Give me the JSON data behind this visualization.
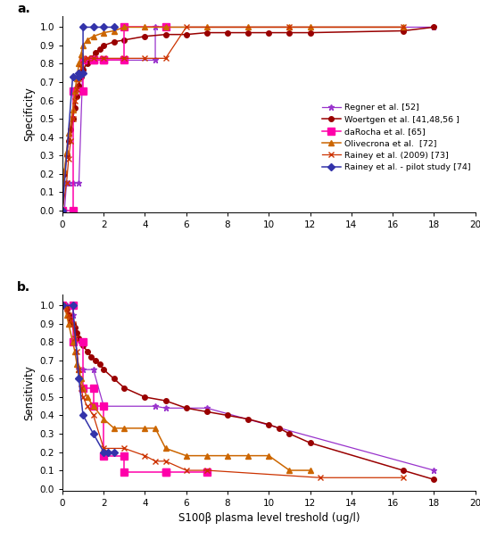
{
  "title_a": "a.",
  "title_b": "b.",
  "xlabel": "S100β plasma level treshold (ug/l)",
  "ylabel_a": "Specificity",
  "ylabel_b": "Sensitivity",
  "xlim": [
    0,
    20
  ],
  "xticks": [
    0,
    2,
    4,
    6,
    8,
    10,
    12,
    14,
    16,
    18,
    20
  ],
  "yticks": [
    0.0,
    0.1,
    0.2,
    0.3,
    0.4,
    0.5,
    0.6,
    0.7,
    0.8,
    0.9,
    1.0
  ],
  "series": [
    {
      "label": "Regner et al. [52]",
      "color": "#9933cc",
      "marker": "*",
      "markersize": 5,
      "linewidth": 0.9,
      "spec_x": [
        0.0,
        0.1,
        0.2,
        0.3,
        0.5,
        0.8,
        1.0,
        1.5,
        2.0,
        4.5,
        4.5,
        5.0,
        18.0
      ],
      "spec_y": [
        0.0,
        0.0,
        0.15,
        0.15,
        0.15,
        0.15,
        0.82,
        0.82,
        0.82,
        0.82,
        1.0,
        1.0,
        1.0
      ],
      "sens_x": [
        0.0,
        0.1,
        0.2,
        0.3,
        0.5,
        0.8,
        1.0,
        1.5,
        2.0,
        4.5,
        5.0,
        7.0,
        18.0
      ],
      "sens_y": [
        1.0,
        1.0,
        1.0,
        0.95,
        0.95,
        0.65,
        0.65,
        0.65,
        0.45,
        0.45,
        0.44,
        0.44,
        0.1
      ]
    },
    {
      "label": "Woertgen et al. [41,48,56 ]",
      "color": "#990000",
      "marker": "o",
      "markersize": 4,
      "linewidth": 1.1,
      "spec_x": [
        0.0,
        0.1,
        0.2,
        0.3,
        0.4,
        0.5,
        0.6,
        0.7,
        0.8,
        0.9,
        1.0,
        1.2,
        1.4,
        1.6,
        1.8,
        2.0,
        2.5,
        3.0,
        4.0,
        5.0,
        6.0,
        7.0,
        8.0,
        9.0,
        10.0,
        11.0,
        12.0,
        16.5,
        18.0
      ],
      "spec_y": [
        0.0,
        0.2,
        0.3,
        0.38,
        0.44,
        0.5,
        0.56,
        0.62,
        0.68,
        0.73,
        0.77,
        0.8,
        0.83,
        0.86,
        0.88,
        0.9,
        0.92,
        0.93,
        0.95,
        0.96,
        0.96,
        0.97,
        0.97,
        0.97,
        0.97,
        0.97,
        0.97,
        0.98,
        1.0
      ],
      "sens_x": [
        0.0,
        0.1,
        0.2,
        0.3,
        0.4,
        0.5,
        0.6,
        0.7,
        0.8,
        0.9,
        1.0,
        1.2,
        1.4,
        1.6,
        1.8,
        2.0,
        2.5,
        3.0,
        4.0,
        5.0,
        6.0,
        7.0,
        8.0,
        9.0,
        10.0,
        10.5,
        11.0,
        12.0,
        16.5,
        18.0
      ],
      "sens_y": [
        1.0,
        1.0,
        0.98,
        0.95,
        0.92,
        0.9,
        0.88,
        0.85,
        0.82,
        0.8,
        0.78,
        0.75,
        0.72,
        0.7,
        0.68,
        0.65,
        0.6,
        0.55,
        0.5,
        0.48,
        0.44,
        0.42,
        0.4,
        0.38,
        0.35,
        0.33,
        0.3,
        0.25,
        0.1,
        0.05
      ]
    },
    {
      "label": "daRocha et al. [65]",
      "color": "#ff00aa",
      "marker": "s",
      "markersize": 6,
      "linewidth": 1.1,
      "spec_x": [
        0.0,
        0.5,
        0.5,
        1.0,
        1.0,
        1.5,
        1.5,
        2.0,
        2.0,
        3.0,
        3.0,
        5.0
      ],
      "spec_y": [
        0.0,
        0.0,
        0.65,
        0.65,
        0.82,
        0.82,
        0.82,
        0.82,
        0.82,
        0.82,
        1.0,
        1.0
      ],
      "sens_x": [
        0.0,
        0.5,
        0.5,
        1.0,
        1.0,
        1.5,
        1.5,
        2.0,
        2.0,
        3.0,
        3.0,
        5.0,
        5.0,
        7.0
      ],
      "sens_y": [
        1.0,
        1.0,
        0.8,
        0.8,
        0.55,
        0.55,
        0.45,
        0.45,
        0.18,
        0.18,
        0.09,
        0.09,
        0.09,
        0.09
      ]
    },
    {
      "label": "Olivecrona et al.  [72]",
      "color": "#cc6600",
      "marker": "^",
      "markersize": 5,
      "linewidth": 1.1,
      "spec_x": [
        0.0,
        0.1,
        0.2,
        0.3,
        0.5,
        0.6,
        0.7,
        0.8,
        0.9,
        1.0,
        1.2,
        1.5,
        2.0,
        2.5,
        3.0,
        4.0,
        5.0,
        7.0,
        9.0,
        11.0,
        12.0,
        16.5
      ],
      "spec_y": [
        0.0,
        0.22,
        0.32,
        0.42,
        0.55,
        0.65,
        0.72,
        0.8,
        0.85,
        0.9,
        0.93,
        0.95,
        0.97,
        0.98,
        1.0,
        1.0,
        1.0,
        1.0,
        1.0,
        1.0,
        1.0,
        1.0
      ],
      "sens_x": [
        0.0,
        0.1,
        0.2,
        0.3,
        0.5,
        0.6,
        0.7,
        0.8,
        0.9,
        1.0,
        1.2,
        1.5,
        2.0,
        2.5,
        3.0,
        4.0,
        4.5,
        5.0,
        6.0,
        7.0,
        8.0,
        9.0,
        10.0,
        11.0,
        12.0
      ],
      "sens_y": [
        1.0,
        1.0,
        0.95,
        0.9,
        0.8,
        0.75,
        0.68,
        0.65,
        0.6,
        0.55,
        0.5,
        0.45,
        0.38,
        0.33,
        0.33,
        0.33,
        0.33,
        0.22,
        0.18,
        0.18,
        0.18,
        0.18,
        0.18,
        0.1,
        0.1
      ]
    },
    {
      "label": "Rainey et al. (2009) [73]",
      "color": "#cc3300",
      "marker": "x",
      "markersize": 5,
      "linewidth": 0.9,
      "spec_x": [
        0.0,
        0.2,
        0.3,
        0.4,
        0.5,
        0.6,
        0.7,
        0.8,
        0.9,
        1.0,
        1.2,
        1.5,
        2.0,
        3.0,
        4.0,
        5.0,
        6.0,
        11.0,
        16.5
      ],
      "spec_y": [
        0.0,
        0.15,
        0.28,
        0.38,
        0.5,
        0.6,
        0.66,
        0.72,
        0.78,
        0.82,
        0.83,
        0.83,
        0.83,
        0.83,
        0.83,
        0.83,
        1.0,
        1.0,
        1.0
      ],
      "sens_x": [
        0.0,
        0.2,
        0.3,
        0.4,
        0.5,
        0.6,
        0.7,
        0.8,
        0.9,
        1.0,
        1.2,
        1.5,
        2.0,
        3.0,
        4.0,
        4.5,
        5.0,
        6.0,
        7.0,
        12.5,
        16.5
      ],
      "sens_y": [
        1.0,
        0.98,
        0.95,
        0.92,
        0.9,
        0.82,
        0.75,
        0.65,
        0.55,
        0.5,
        0.45,
        0.4,
        0.22,
        0.22,
        0.18,
        0.15,
        0.15,
        0.1,
        0.1,
        0.06,
        0.06
      ]
    },
    {
      "label": "Rainey et al. - pilot study [74]",
      "color": "#3333aa",
      "marker": "D",
      "markersize": 4,
      "linewidth": 1.1,
      "spec_x": [
        0.0,
        0.5,
        0.8,
        0.8,
        1.0,
        1.0,
        1.5,
        2.0,
        2.5
      ],
      "spec_y": [
        0.0,
        0.73,
        0.73,
        0.75,
        0.75,
        1.0,
        1.0,
        1.0,
        1.0
      ],
      "sens_x": [
        0.0,
        0.5,
        0.8,
        1.0,
        1.5,
        2.0,
        2.2,
        2.5
      ],
      "sens_y": [
        1.0,
        1.0,
        0.6,
        0.4,
        0.3,
        0.2,
        0.2,
        0.2
      ]
    }
  ],
  "figure_bg": "#ffffff",
  "axes_bg": "#ffffff"
}
